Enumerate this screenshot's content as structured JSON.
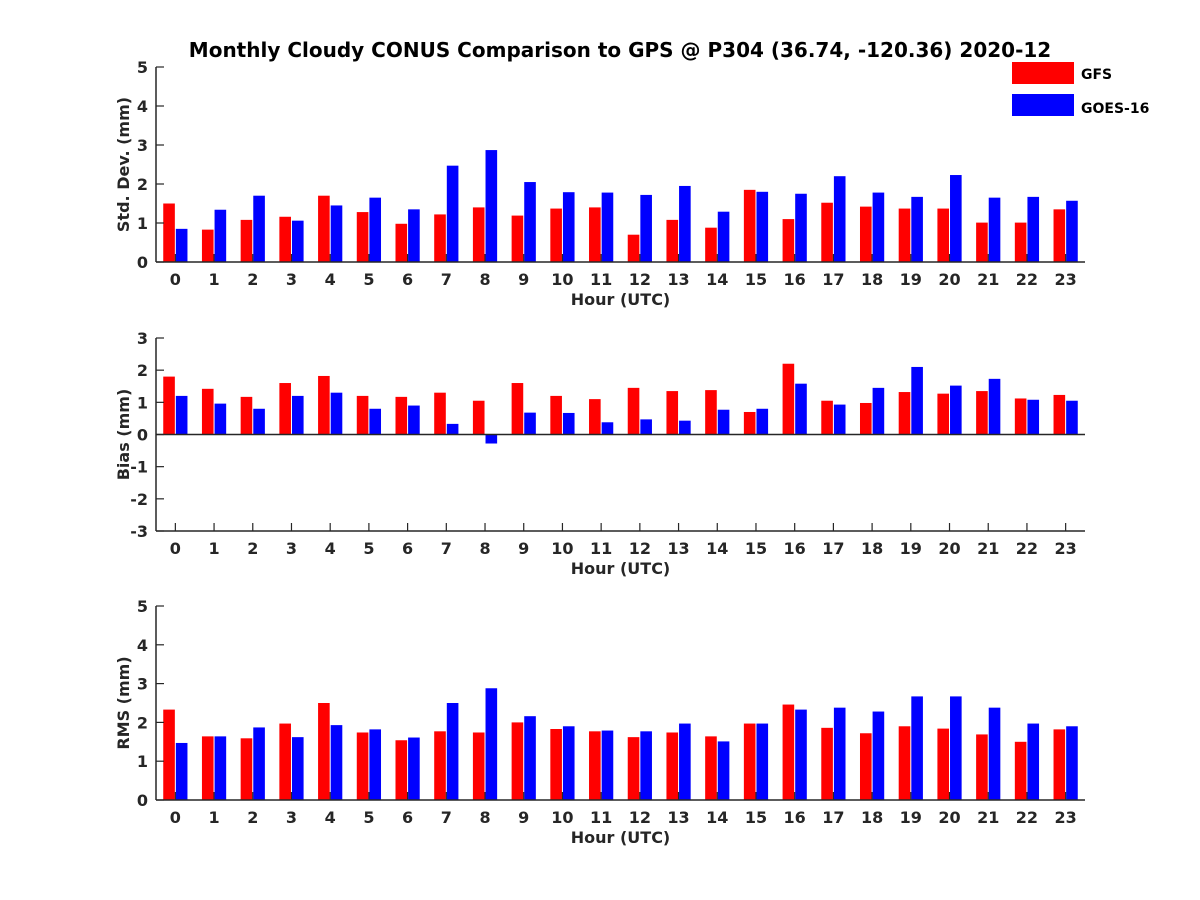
{
  "title": "Monthly Cloudy CONUS Comparison to GPS @ P304 (36.74, -120.36) 2020-12",
  "legend": [
    {
      "name": "GFS",
      "color": "#ff0000"
    },
    {
      "name": "GOES-16",
      "color": "#0000ff"
    }
  ],
  "chart_data": [
    {
      "type": "bar",
      "title": "Monthly Cloudy CONUS Comparison to GPS @ P304 (36.74, -120.36) 2020-12",
      "xlabel": "Hour (UTC)",
      "ylabel": "Std. Dev. (mm)",
      "ylim": [
        0,
        5
      ],
      "yticks": [
        "0",
        "1",
        "2",
        "3",
        "4",
        "5"
      ],
      "categories": [
        "0",
        "1",
        "2",
        "3",
        "4",
        "5",
        "6",
        "7",
        "8",
        "9",
        "10",
        "11",
        "12",
        "13",
        "14",
        "15",
        "16",
        "17",
        "18",
        "19",
        "20",
        "21",
        "22",
        "23"
      ],
      "legend_position": "top-right",
      "series": [
        {
          "name": "GFS",
          "color": "#ff0000",
          "values": [
            1.5,
            0.83,
            1.08,
            1.16,
            1.7,
            1.28,
            0.98,
            1.22,
            1.4,
            1.19,
            1.37,
            1.4,
            0.7,
            1.08,
            0.88,
            1.85,
            1.1,
            1.52,
            1.42,
            1.37,
            1.37,
            1.01,
            1.01,
            1.35
          ]
        },
        {
          "name": "GOES-16",
          "color": "#0000ff",
          "values": [
            0.85,
            1.34,
            1.7,
            1.06,
            1.45,
            1.65,
            1.35,
            2.47,
            2.87,
            2.05,
            1.79,
            1.78,
            1.72,
            1.95,
            1.29,
            1.8,
            1.75,
            2.2,
            1.78,
            1.67,
            2.23,
            1.65,
            1.67,
            1.57
          ]
        }
      ]
    },
    {
      "type": "bar",
      "xlabel": "Hour (UTC)",
      "ylabel": "Bias (mm)",
      "ylim": [
        -3,
        3
      ],
      "yticks": [
        "-3",
        "-2",
        "-1",
        "0",
        "1",
        "2",
        "3"
      ],
      "categories": [
        "0",
        "1",
        "2",
        "3",
        "4",
        "5",
        "6",
        "7",
        "8",
        "9",
        "10",
        "11",
        "12",
        "13",
        "14",
        "15",
        "16",
        "17",
        "18",
        "19",
        "20",
        "21",
        "22",
        "23"
      ],
      "series": [
        {
          "name": "GFS",
          "color": "#ff0000",
          "values": [
            1.8,
            1.42,
            1.17,
            1.6,
            1.82,
            1.2,
            1.17,
            1.3,
            1.05,
            1.6,
            1.2,
            1.1,
            1.45,
            1.35,
            1.38,
            0.7,
            2.2,
            1.05,
            0.98,
            1.32,
            1.27,
            1.35,
            1.12,
            1.23
          ]
        },
        {
          "name": "GOES-16",
          "color": "#0000ff",
          "values": [
            1.2,
            0.96,
            0.8,
            1.2,
            1.3,
            0.8,
            0.9,
            0.33,
            -0.28,
            0.68,
            0.67,
            0.38,
            0.47,
            0.43,
            0.77,
            0.8,
            1.58,
            0.93,
            1.45,
            2.1,
            1.52,
            1.73,
            1.08,
            1.05
          ]
        }
      ]
    },
    {
      "type": "bar",
      "xlabel": "Hour (UTC)",
      "ylabel": "RMS (mm)",
      "ylim": [
        0,
        5
      ],
      "yticks": [
        "0",
        "1",
        "2",
        "3",
        "4",
        "5"
      ],
      "categories": [
        "0",
        "1",
        "2",
        "3",
        "4",
        "5",
        "6",
        "7",
        "8",
        "9",
        "10",
        "11",
        "12",
        "13",
        "14",
        "15",
        "16",
        "17",
        "18",
        "19",
        "20",
        "21",
        "22",
        "23"
      ],
      "series": [
        {
          "name": "GFS",
          "color": "#ff0000",
          "values": [
            2.33,
            1.64,
            1.59,
            1.97,
            2.5,
            1.74,
            1.54,
            1.77,
            1.74,
            2.0,
            1.83,
            1.77,
            1.62,
            1.74,
            1.64,
            1.97,
            2.46,
            1.86,
            1.72,
            1.9,
            1.84,
            1.69,
            1.5,
            1.82
          ]
        },
        {
          "name": "GOES-16",
          "color": "#0000ff",
          "values": [
            1.47,
            1.64,
            1.87,
            1.62,
            1.93,
            1.82,
            1.61,
            2.5,
            2.88,
            2.16,
            1.9,
            1.79,
            1.77,
            1.97,
            1.51,
            1.97,
            2.33,
            2.38,
            2.28,
            2.67,
            2.67,
            2.38,
            1.97,
            1.9
          ]
        }
      ]
    }
  ]
}
